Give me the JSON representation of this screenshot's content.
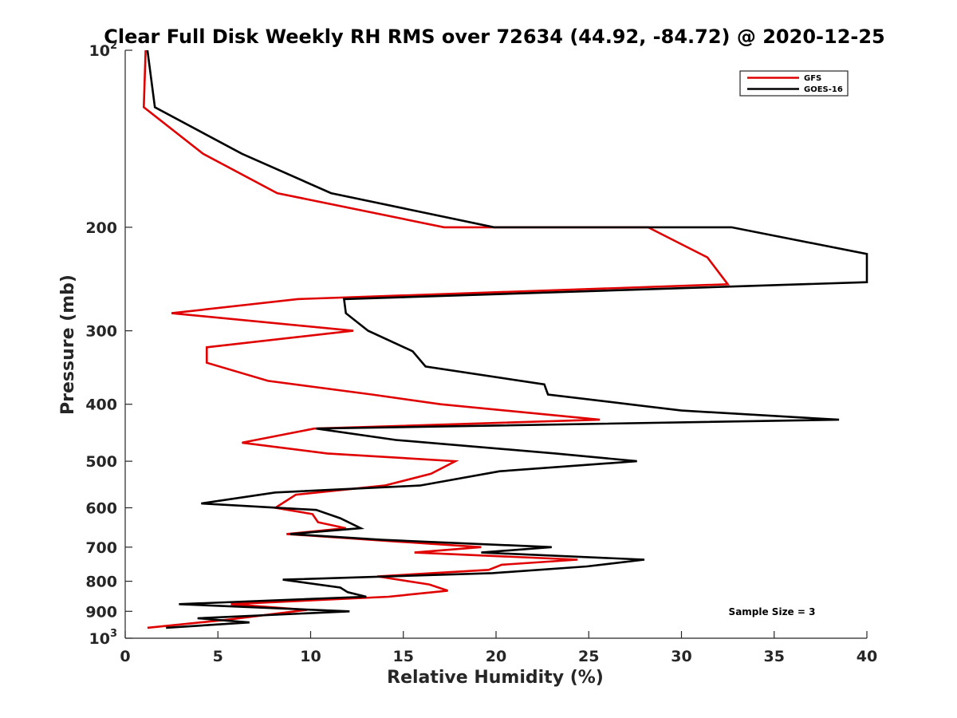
{
  "chart_data": {
    "type": "line",
    "title": "Clear Full Disk Weekly RH RMS over 72634 (44.92, -84.72) @ 2020-12-25",
    "xlabel": "Relative Humidity (%)",
    "ylabel": "Pressure (mb)",
    "xlim": [
      0,
      40
    ],
    "ylim": [
      100,
      1000
    ],
    "yscale": "log",
    "yreversed": true,
    "grid": false,
    "legend_position": "top-right",
    "x_ticks": [
      {
        "value": 0,
        "label": "0"
      },
      {
        "value": 5,
        "label": "5"
      },
      {
        "value": 10,
        "label": "10"
      },
      {
        "value": 15,
        "label": "15"
      },
      {
        "value": 20,
        "label": "20"
      },
      {
        "value": 25,
        "label": "25"
      },
      {
        "value": 30,
        "label": "30"
      },
      {
        "value": 35,
        "label": "35"
      },
      {
        "value": 40,
        "label": "40"
      }
    ],
    "y_ticks": [
      {
        "value": 100,
        "base": "10",
        "exp": "2"
      },
      {
        "value": 200,
        "base": "200",
        "exp": ""
      },
      {
        "value": 300,
        "base": "300",
        "exp": ""
      },
      {
        "value": 400,
        "base": "400",
        "exp": ""
      },
      {
        "value": 500,
        "base": "500",
        "exp": ""
      },
      {
        "value": 600,
        "base": "600",
        "exp": ""
      },
      {
        "value": 700,
        "base": "700",
        "exp": ""
      },
      {
        "value": 800,
        "base": "800",
        "exp": ""
      },
      {
        "value": 900,
        "base": "900",
        "exp": ""
      },
      {
        "value": 1000,
        "base": "10",
        "exp": "3"
      }
    ],
    "annotation": "Sample Size = 3",
    "series": [
      {
        "name": "GFS",
        "color": "#e00000",
        "points": [
          {
            "x": 1.1,
            "p": 100
          },
          {
            "x": 1.0,
            "p": 125
          },
          {
            "x": 4.2,
            "p": 150
          },
          {
            "x": 8.2,
            "p": 175
          },
          {
            "x": 17.2,
            "p": 200
          },
          {
            "x": 28.2,
            "p": 200
          },
          {
            "x": 31.4,
            "p": 225
          },
          {
            "x": 32.5,
            "p": 250
          },
          {
            "x": 9.3,
            "p": 265
          },
          {
            "x": 2.5,
            "p": 280
          },
          {
            "x": 12.3,
            "p": 300
          },
          {
            "x": 4.4,
            "p": 320
          },
          {
            "x": 4.4,
            "p": 340
          },
          {
            "x": 7.7,
            "p": 365
          },
          {
            "x": 13.3,
            "p": 385
          },
          {
            "x": 17.0,
            "p": 400
          },
          {
            "x": 25.6,
            "p": 425
          },
          {
            "x": 10.2,
            "p": 440
          },
          {
            "x": 6.3,
            "p": 465
          },
          {
            "x": 10.9,
            "p": 485
          },
          {
            "x": 17.8,
            "p": 500
          },
          {
            "x": 16.5,
            "p": 525
          },
          {
            "x": 14.0,
            "p": 550
          },
          {
            "x": 9.2,
            "p": 570
          },
          {
            "x": 8.1,
            "p": 600
          },
          {
            "x": 10.1,
            "p": 615
          },
          {
            "x": 10.4,
            "p": 635
          },
          {
            "x": 11.9,
            "p": 650
          },
          {
            "x": 8.7,
            "p": 665
          },
          {
            "x": 14.7,
            "p": 685
          },
          {
            "x": 19.2,
            "p": 700
          },
          {
            "x": 15.6,
            "p": 715
          },
          {
            "x": 24.4,
            "p": 735
          },
          {
            "x": 20.3,
            "p": 750
          },
          {
            "x": 19.6,
            "p": 765
          },
          {
            "x": 13.6,
            "p": 785
          },
          {
            "x": 16.4,
            "p": 810
          },
          {
            "x": 17.4,
            "p": 830
          },
          {
            "x": 14.2,
            "p": 850
          },
          {
            "x": 5.7,
            "p": 875
          },
          {
            "x": 9.8,
            "p": 895
          },
          {
            "x": 5.5,
            "p": 930
          },
          {
            "x": 1.2,
            "p": 960
          }
        ]
      },
      {
        "name": "GOES-16",
        "color": "#000000",
        "points": [
          {
            "x": 1.2,
            "p": 100
          },
          {
            "x": 1.6,
            "p": 125
          },
          {
            "x": 6.3,
            "p": 150
          },
          {
            "x": 11.1,
            "p": 175
          },
          {
            "x": 19.9,
            "p": 200
          },
          {
            "x": 32.7,
            "p": 200
          },
          {
            "x": 40.0,
            "p": 222
          },
          {
            "x": 40.0,
            "p": 248
          },
          {
            "x": 11.8,
            "p": 265
          },
          {
            "x": 11.9,
            "p": 280
          },
          {
            "x": 13.1,
            "p": 300
          },
          {
            "x": 15.5,
            "p": 325
          },
          {
            "x": 16.2,
            "p": 345
          },
          {
            "x": 22.6,
            "p": 370
          },
          {
            "x": 22.8,
            "p": 385
          },
          {
            "x": 30.0,
            "p": 410
          },
          {
            "x": 38.5,
            "p": 425
          },
          {
            "x": 10.3,
            "p": 440
          },
          {
            "x": 14.6,
            "p": 460
          },
          {
            "x": 23.2,
            "p": 485
          },
          {
            "x": 27.6,
            "p": 500
          },
          {
            "x": 20.2,
            "p": 520
          },
          {
            "x": 15.9,
            "p": 550
          },
          {
            "x": 8.1,
            "p": 565
          },
          {
            "x": 4.1,
            "p": 590
          },
          {
            "x": 10.3,
            "p": 605
          },
          {
            "x": 11.6,
            "p": 625
          },
          {
            "x": 12.7,
            "p": 650
          },
          {
            "x": 8.9,
            "p": 665
          },
          {
            "x": 13.8,
            "p": 680
          },
          {
            "x": 23.0,
            "p": 700
          },
          {
            "x": 19.2,
            "p": 715
          },
          {
            "x": 28.0,
            "p": 735
          },
          {
            "x": 24.9,
            "p": 755
          },
          {
            "x": 19.8,
            "p": 775
          },
          {
            "x": 8.5,
            "p": 795
          },
          {
            "x": 11.6,
            "p": 820
          },
          {
            "x": 12.0,
            "p": 835
          },
          {
            "x": 13.0,
            "p": 850
          },
          {
            "x": 2.9,
            "p": 875
          },
          {
            "x": 12.1,
            "p": 900
          },
          {
            "x": 3.9,
            "p": 925
          },
          {
            "x": 6.7,
            "p": 940
          },
          {
            "x": 2.2,
            "p": 960
          }
        ]
      }
    ]
  }
}
